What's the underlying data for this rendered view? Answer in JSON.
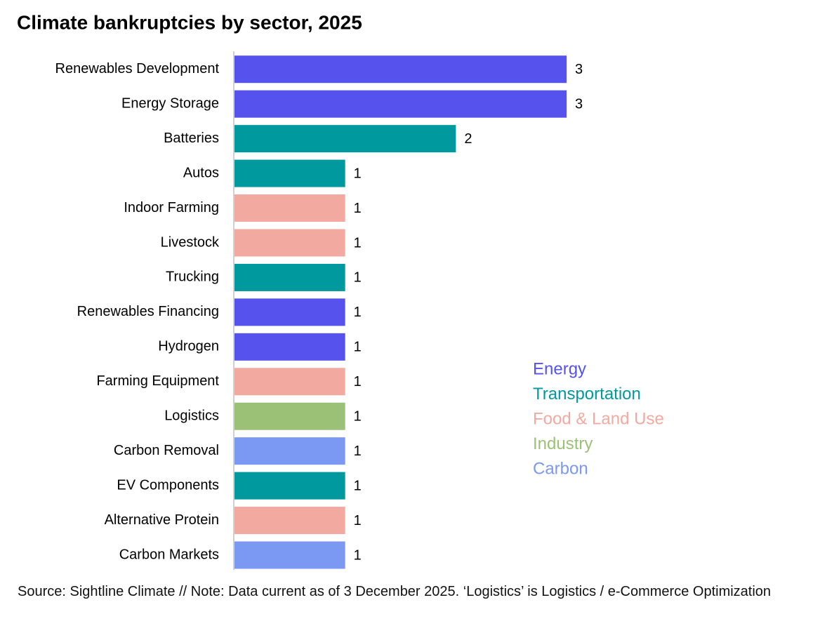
{
  "chart_data": {
    "type": "bar",
    "orientation": "horizontal",
    "title": "Climate bankruptcies by sector, 2025",
    "footer": "Source: Sightline Climate  //  Note: Data current as of 3 December 2025. ‘Logistics’ is Logistics / e-Commerce Optimization",
    "categories": [
      "Renewables Development",
      "Energy Storage",
      "Batteries",
      "Autos",
      "Indoor Farming",
      "Livestock",
      "Trucking",
      "Renewables Financing",
      "Hydrogen",
      "Farming Equipment",
      "Logistics",
      "Carbon Removal",
      "EV Components",
      "Alternative Protein",
      "Carbon Markets"
    ],
    "series": [
      {
        "name": "Energy",
        "color": "#5552ee",
        "values": [
          3,
          3,
          null,
          null,
          null,
          null,
          null,
          1,
          1,
          null,
          null,
          null,
          null,
          null,
          null
        ]
      },
      {
        "name": "Transportation",
        "color": "#00999e",
        "values": [
          null,
          null,
          2,
          1,
          null,
          null,
          1,
          null,
          null,
          null,
          null,
          null,
          1,
          null,
          null
        ]
      },
      {
        "name": "Food & Land Use",
        "color": "#f2a9a0",
        "values": [
          null,
          null,
          null,
          null,
          1,
          1,
          null,
          null,
          null,
          1,
          null,
          null,
          null,
          1,
          null
        ]
      },
      {
        "name": "Industry",
        "color": "#9bc177",
        "values": [
          null,
          null,
          null,
          null,
          null,
          null,
          null,
          null,
          null,
          null,
          1,
          null,
          null,
          null,
          null
        ]
      },
      {
        "name": "Carbon",
        "color": "#7b98f2",
        "values": [
          null,
          null,
          null,
          null,
          null,
          null,
          null,
          null,
          null,
          null,
          null,
          1,
          null,
          null,
          1
        ]
      }
    ],
    "xlim": [
      0,
      3
    ],
    "legend": "right"
  }
}
